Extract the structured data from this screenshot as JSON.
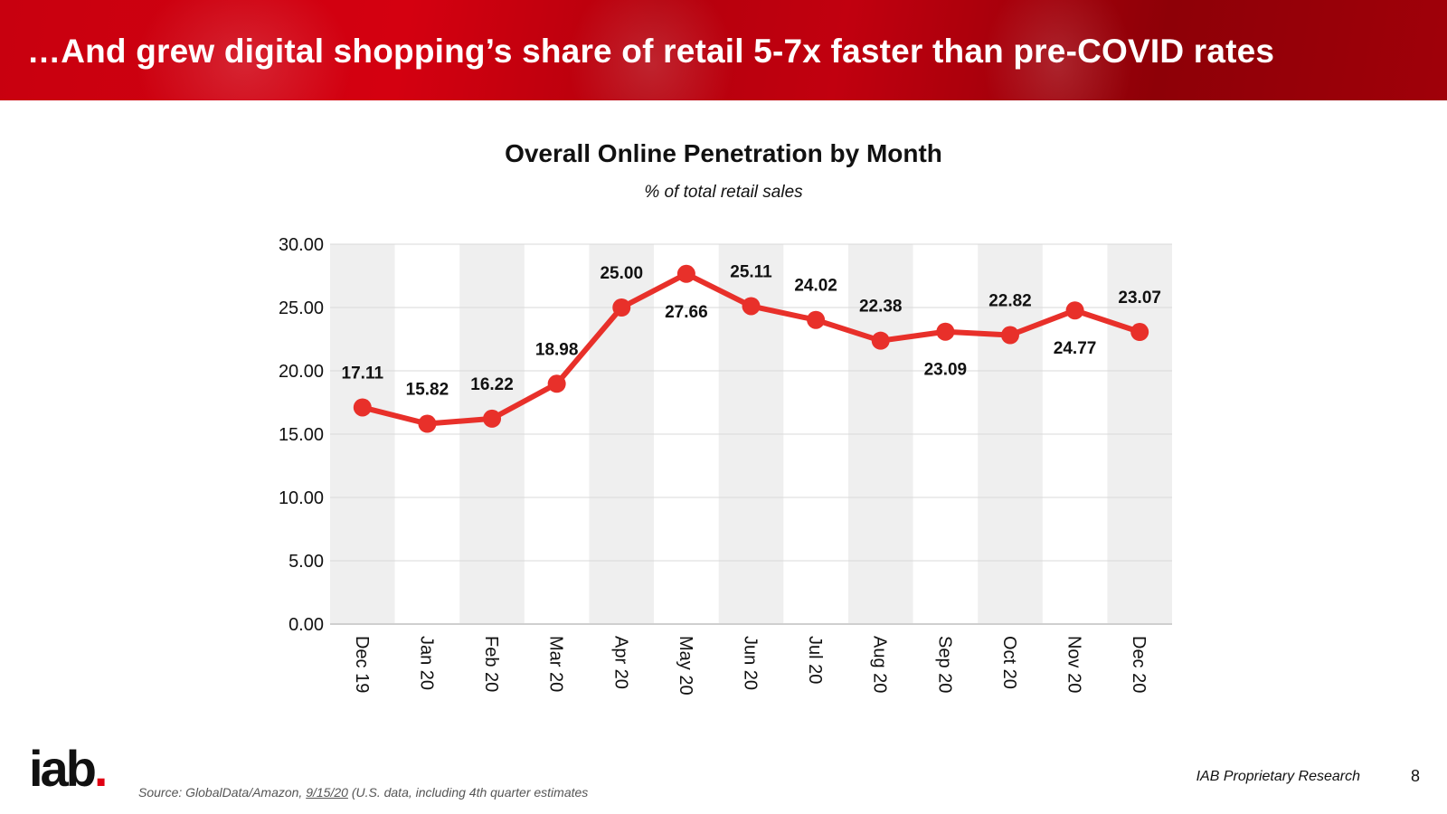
{
  "header": {
    "title": "…And grew digital shopping’s share of retail 5-7x faster than pre-COVID rates"
  },
  "chart_data": {
    "type": "line",
    "title": "Overall Online Penetration by Month",
    "subtitle": "% of total retail sales",
    "categories": [
      "Dec 19",
      "Jan 20",
      "Feb 20",
      "Mar 20",
      "Apr 20",
      "May 20",
      "Jun 20",
      "Jul 20",
      "Aug 20",
      "Sep 20",
      "Oct 20",
      "Nov 20",
      "Dec 20"
    ],
    "series": [
      {
        "values": [
          17.11,
          15.82,
          16.22,
          18.98,
          25.0,
          27.66,
          25.11,
          24.02,
          22.38,
          23.09,
          22.82,
          24.77,
          23.07
        ]
      }
    ],
    "ylim": [
      0,
      30
    ],
    "yticks": [
      "30.00",
      "25.00",
      "20.00",
      "15.00",
      "10.00",
      "5.00",
      "0.00"
    ],
    "line_color": "#e8302a",
    "band_color": "#efefef",
    "grid": true,
    "xlabel": "",
    "ylabel": ""
  },
  "footer": {
    "logo_text": "iab",
    "logo_dot": ".",
    "source_prefix": "Source: GlobalData/Amazon, ",
    "source_date": "9/15/20",
    "source_suffix": " (U.S. data, including 4th quarter estimates",
    "proprietary": "IAB Proprietary Research",
    "page_number": "8"
  },
  "colors": {
    "banner_red": "#c8000f",
    "logo_dot_red": "#e00012"
  }
}
